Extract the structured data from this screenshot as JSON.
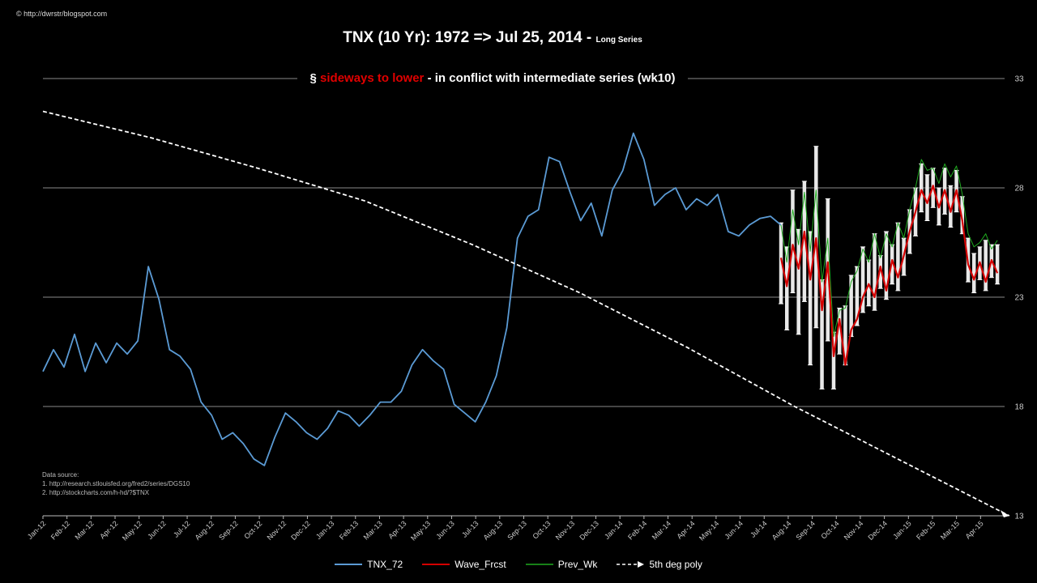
{
  "copyright": "© http://dwrstr/blogspot.com",
  "chart_data": {
    "type": "line",
    "title_main": "TNX (10 Yr): 1972 => Jul 25, 2014 - ",
    "title_suffix": "Long  Series",
    "subtitle_prefix": "§ ",
    "subtitle_red": "sideways to lower",
    "subtitle_rest": " - in conflict with intermediate series (wk10)",
    "ylim": [
      13,
      33
    ],
    "yticks": [
      13,
      18,
      23,
      28,
      33
    ],
    "y_axis_position": "right",
    "grid": true,
    "x_tick_labels": [
      "Jan-12",
      "Feb-12",
      "Mar-12",
      "Apr-12",
      "May-12",
      "Jun-12",
      "Jul-12",
      "Aug-12",
      "Sep-12",
      "Oct-12",
      "Nov-12",
      "Dec-12",
      "Jan-13",
      "Feb-13",
      "Mar-13",
      "Apr-13",
      "May-13",
      "Jun-13",
      "Jul-13",
      "Aug-13",
      "Sep-13",
      "Oct-13",
      "Nov-13",
      "Dec-13",
      "Jan-14",
      "Feb-14",
      "Mar-14",
      "Apr-14",
      "May-14",
      "Jun-14",
      "Jul-14",
      "Aug-14",
      "Sep-14",
      "Oct-14",
      "Nov-14",
      "Dec-14",
      "Jan-15",
      "Feb-15",
      "Mar-15",
      "Apr-15"
    ],
    "series": [
      {
        "name": "TNX_72",
        "color": "#5b9bd5",
        "x_start": 0,
        "x_end": 30.7,
        "values": [
          19.6,
          20.6,
          19.8,
          21.3,
          19.6,
          20.9,
          20.0,
          20.9,
          20.4,
          21.0,
          24.4,
          22.9,
          20.6,
          20.3,
          19.7,
          18.2,
          17.6,
          16.5,
          16.8,
          16.3,
          15.6,
          15.3,
          16.6,
          17.7,
          17.3,
          16.8,
          16.5,
          17.0,
          17.8,
          17.6,
          17.1,
          17.6,
          18.2,
          18.2,
          18.7,
          19.9,
          20.6,
          20.1,
          19.7,
          18.1,
          17.7,
          17.3,
          18.2,
          19.4,
          21.6,
          25.7,
          26.7,
          27.0,
          29.4,
          29.2,
          27.8,
          26.5,
          27.3,
          25.8,
          27.9,
          28.8,
          30.5,
          29.3,
          27.2,
          27.7,
          28.0,
          27.0,
          27.5,
          27.2,
          27.7,
          26.0,
          25.8,
          26.3,
          26.6,
          26.7,
          26.3
        ]
      },
      {
        "name": "Wave_Frcst",
        "color": "#d40000",
        "x_start": 30.7,
        "x_end": 39.7,
        "values": [
          24.8,
          23.5,
          25.4,
          24.3,
          26.0,
          23.8,
          25.7,
          22.4,
          24.6,
          20.3,
          22.0,
          19.9,
          21.5,
          22.0,
          23.0,
          23.6,
          23.0,
          24.4,
          23.3,
          24.7,
          23.9,
          24.9,
          26.0,
          26.9,
          27.9,
          27.3,
          28.1,
          27.1,
          27.9,
          26.9,
          27.9,
          26.5,
          24.5,
          23.8,
          24.6,
          23.7,
          24.7,
          24.1
        ]
      },
      {
        "name": "Prev_Wk",
        "color": "#1faa1f",
        "x_start": 30.7,
        "x_end": 39.7,
        "values": [
          26.3,
          24.6,
          27.0,
          25.4,
          27.8,
          25.1,
          27.9,
          23.7,
          25.7,
          21.2,
          22.4,
          22.5,
          23.7,
          24.2,
          25.2,
          24.6,
          25.9,
          24.8,
          25.9,
          25.3,
          26.4,
          25.7,
          27.0,
          28.0,
          29.3,
          28.8,
          28.9,
          28.2,
          29.1,
          28.5,
          29.0,
          27.7,
          25.9,
          25.3,
          25.5,
          25.9,
          25.2,
          25.6
        ]
      },
      {
        "name": "5th deg poly",
        "color": "#ffffff",
        "dashed": true,
        "x_start": 0,
        "x_end": 40.2,
        "values": [
          31.5,
          30.3,
          28.9,
          27.4,
          25.4,
          23.2,
          20.7,
          18.0,
          15.5,
          13.0
        ]
      }
    ],
    "error_band": {
      "x_start": 30.7,
      "x_end": 39.7,
      "low": [
        22.7,
        21.5,
        23.2,
        21.3,
        22.8,
        19.9,
        21.6,
        18.8,
        21.0,
        18.8,
        20.4,
        19.9,
        21.2,
        21.7,
        22.3,
        22.6,
        22.4,
        23.4,
        22.9,
        23.6,
        23.3,
        24.0,
        25.0,
        25.8,
        26.9,
        26.5,
        27.1,
        26.3,
        26.8,
        26.2,
        26.9,
        25.9,
        23.7,
        23.2,
        23.8,
        23.3,
        23.9,
        23.6
      ],
      "high": [
        26.4,
        25.3,
        27.9,
        26.1,
        28.3,
        26.0,
        29.9,
        23.8,
        27.5,
        21.4,
        22.5,
        22.6,
        24.0,
        24.4,
        25.3,
        24.7,
        25.9,
        24.9,
        26.0,
        25.4,
        26.4,
        25.7,
        27.0,
        28.0,
        29.1,
        28.6,
        28.9,
        28.0,
        28.9,
        28.1,
        28.8,
        27.6,
        25.7,
        25.0,
        25.3,
        25.6,
        25.4,
        25.4
      ]
    },
    "source_lines": [
      "Data source:",
      "1. http://research.stlouisfed.org/fred2/series/DGS10",
      "2. http://stockcharts.com/h-hd/?$TNX"
    ],
    "legend_placement": "bottom"
  }
}
